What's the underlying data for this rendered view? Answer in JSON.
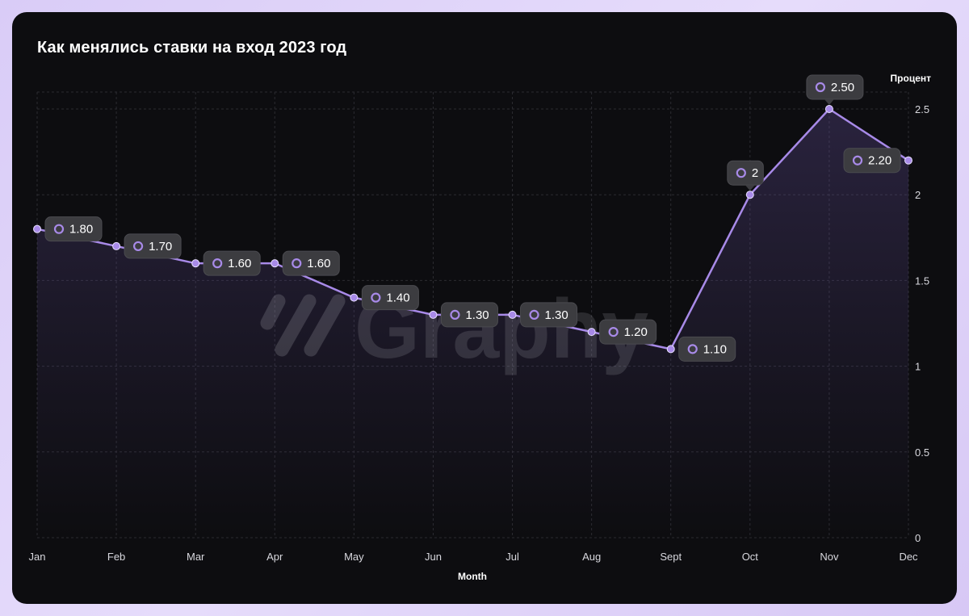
{
  "page": {
    "title": "Как менялись ставки на вход 2023 год",
    "watermark": "Graphy"
  },
  "colors": {
    "line": "#a88ae8",
    "label_bg": "#3c3c40",
    "card_bg": "#0d0d10"
  },
  "chart_data": {
    "type": "line",
    "title": "Как менялись ставки на вход 2023 год",
    "xlabel": "Month",
    "ylabel": "Процент",
    "categories": [
      "Jan",
      "Feb",
      "Mar",
      "Apr",
      "May",
      "Jun",
      "Jul",
      "Aug",
      "Sept",
      "Oct",
      "Nov",
      "Dec"
    ],
    "series": [
      {
        "values": [
          1.8,
          1.7,
          1.6,
          1.6,
          1.4,
          1.3,
          1.3,
          1.2,
          1.1,
          2.0,
          2.5,
          2.2
        ],
        "labels": [
          "1.80",
          "1.70",
          "1.60",
          "1.60",
          "1.40",
          "1.30",
          "1.30",
          "1.20",
          "1.10",
          "2",
          "2.50",
          "2.20"
        ]
      }
    ],
    "yticks": [
      "0",
      "0.5",
      "1",
      "1.5",
      "2",
      "2.5"
    ],
    "ylim": [
      0,
      2.6
    ],
    "grid": true,
    "yaxis_position": "right",
    "legend": "none"
  }
}
